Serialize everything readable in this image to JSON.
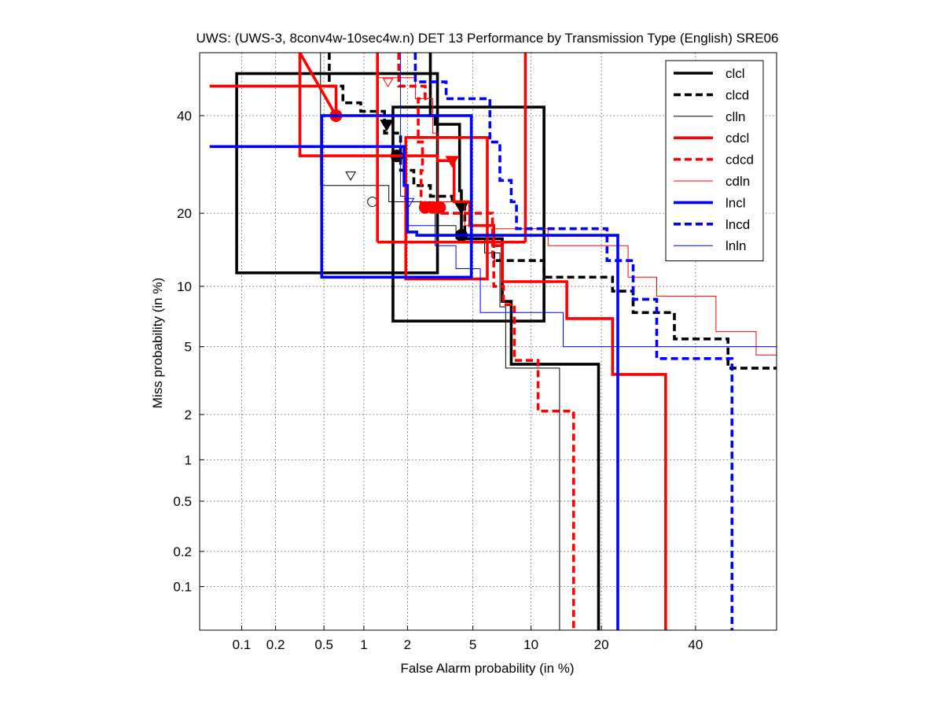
{
  "chart_data": {
    "type": "line",
    "title": "UWS: (UWS-3, 8conv4w-10sec4w.n) DET 13 Performance by Transmission Type (English) SRE06",
    "xlabel": "False Alarm probability (in %)",
    "ylabel": "Miss probability (in %)",
    "scale": "normal-deviate (probit) on both axes",
    "xlim": [
      0.04,
      60
    ],
    "ylim": [
      0.04,
      55
    ],
    "xticks": [
      0.1,
      0.2,
      0.5,
      1,
      2,
      5,
      10,
      20,
      40
    ],
    "xtick_labels": [
      "0.1",
      "0.2",
      "0.5",
      "1",
      "2",
      "5",
      "10",
      "20",
      "40"
    ],
    "yticks": [
      0.1,
      0.2,
      0.5,
      1,
      2,
      5,
      10,
      20,
      40
    ],
    "ytick_labels": [
      "0.1",
      "0.2",
      "0.5",
      "1",
      "2",
      "5",
      "10",
      "20",
      "40"
    ],
    "grid": true,
    "legend_position": "top-right",
    "series": [
      {
        "name": "clcl",
        "color": "#000000",
        "style": "solid",
        "width": "thick",
        "points": [
          [
            2.8,
            55
          ],
          [
            2.8,
            40
          ],
          [
            3.0,
            40
          ],
          [
            3.0,
            38
          ],
          [
            4.2,
            38
          ],
          [
            4.2,
            24
          ],
          [
            4.3,
            24
          ],
          [
            4.3,
            16
          ],
          [
            7.2,
            16
          ],
          [
            7.2,
            8.5
          ],
          [
            8.0,
            8.5
          ],
          [
            8.0,
            4.0
          ],
          [
            19.5,
            4.0
          ],
          [
            19.5,
            0.04
          ]
        ],
        "ci_box": {
          "x": [
            1.6,
            11.5
          ],
          "y": [
            6.8,
            42
          ]
        },
        "ci_box2": {
          "x": [
            0.09,
            3.1
          ],
          "y": [
            11.5,
            50
          ]
        },
        "markers": [
          {
            "x": 1.45,
            "y": 38,
            "symbol": "down-triangle"
          },
          {
            "x": 1.7,
            "y": 31,
            "symbol": "circle"
          },
          {
            "x": 4.3,
            "y": 21,
            "symbol": "down-triangle"
          },
          {
            "x": 4.3,
            "y": 16.5,
            "symbol": "circle"
          }
        ]
      },
      {
        "name": "clcd",
        "color": "#000000",
        "style": "dashed",
        "width": "thick",
        "points": [
          [
            0.55,
            55
          ],
          [
            0.55,
            47
          ],
          [
            0.7,
            47
          ],
          [
            0.7,
            43
          ],
          [
            0.95,
            43
          ],
          [
            0.95,
            41
          ],
          [
            1.4,
            41
          ],
          [
            1.4,
            36
          ],
          [
            1.8,
            36
          ],
          [
            1.8,
            28
          ],
          [
            2.2,
            28
          ],
          [
            2.2,
            25
          ],
          [
            2.8,
            25
          ],
          [
            2.8,
            23
          ],
          [
            3.8,
            23
          ],
          [
            3.8,
            22
          ],
          [
            4.5,
            22
          ],
          [
            4.5,
            16
          ],
          [
            6.5,
            16
          ],
          [
            6.5,
            13
          ],
          [
            11.5,
            13
          ],
          [
            11.5,
            11
          ],
          [
            22,
            11
          ],
          [
            22,
            9.5
          ],
          [
            26,
            9.5
          ],
          [
            26,
            7.5
          ],
          [
            35,
            7.5
          ],
          [
            35,
            5.5
          ],
          [
            48,
            5.5
          ],
          [
            48,
            3.8
          ],
          [
            60,
            3.8
          ]
        ],
        "markers": []
      },
      {
        "name": "clln",
        "color": "#000000",
        "style": "solid",
        "width": "thin",
        "points": [
          [
            0.47,
            55
          ],
          [
            0.47,
            25
          ],
          [
            1.5,
            25
          ],
          [
            1.5,
            22
          ],
          [
            3.0,
            22
          ],
          [
            3.0,
            18
          ],
          [
            4.0,
            18
          ],
          [
            4.0,
            16
          ],
          [
            5.8,
            16
          ],
          [
            5.8,
            14
          ],
          [
            7.0,
            14
          ],
          [
            7.0,
            8
          ],
          [
            7.5,
            8
          ],
          [
            7.5,
            3.8
          ],
          [
            13.5,
            3.8
          ],
          [
            13.5,
            0.04
          ]
        ],
        "markers": [
          {
            "x": 0.8,
            "y": 27,
            "symbol": "down-triangle-open"
          },
          {
            "x": 1.15,
            "y": 22,
            "symbol": "circle-open"
          }
        ]
      },
      {
        "name": "cdcl",
        "color": "#ff0000",
        "style": "solid",
        "width": "thick",
        "points": [
          [
            0.05,
            47
          ],
          [
            0.62,
            47
          ],
          [
            0.62,
            40
          ],
          [
            0.62,
            40
          ],
          [
            0.32,
            55
          ],
          [
            0.32,
            31
          ],
          [
            3.1,
            31
          ],
          [
            3.1,
            30
          ],
          [
            3.9,
            30
          ],
          [
            3.9,
            22
          ],
          [
            4.8,
            22
          ],
          [
            4.8,
            18
          ],
          [
            6.5,
            18
          ],
          [
            6.5,
            15
          ],
          [
            7.2,
            15
          ],
          [
            7.2,
            10.5
          ],
          [
            14.5,
            10.5
          ],
          [
            14.5,
            7
          ],
          [
            22,
            7
          ],
          [
            22,
            3.5
          ],
          [
            33,
            3.5
          ],
          [
            33,
            0.04
          ]
        ],
        "extra_lines": [
          {
            "x": [
              1.25,
              9.4
            ],
            "y": [
              15.5,
              15.5
            ]
          },
          {
            "x": [
              9.4,
              9.4
            ],
            "y": [
              15.5,
              55
            ]
          },
          {
            "x": [
              1.25,
              1.25
            ],
            "y": [
              15.5,
              55
            ]
          }
        ],
        "markers": [
          {
            "x": 0.62,
            "y": 40,
            "symbol": "circle"
          },
          {
            "x": 3.8,
            "y": 30,
            "symbol": "down-triangle"
          }
        ]
      },
      {
        "name": "cdcd",
        "color": "#ff0000",
        "style": "dashed",
        "width": "thick",
        "points": [
          [
            1.75,
            55
          ],
          [
            1.75,
            47
          ],
          [
            2.6,
            47
          ],
          [
            2.6,
            44
          ],
          [
            2.35,
            44
          ],
          [
            2.35,
            34
          ],
          [
            2.5,
            34
          ],
          [
            2.5,
            28
          ],
          [
            2.45,
            28
          ],
          [
            2.45,
            21
          ],
          [
            3.3,
            21
          ],
          [
            3.3,
            20
          ],
          [
            6.4,
            20
          ],
          [
            6.4,
            13
          ],
          [
            6.5,
            13
          ],
          [
            6.5,
            10
          ],
          [
            7.3,
            10
          ],
          [
            7.3,
            8.2
          ],
          [
            8.3,
            8.2
          ],
          [
            8.3,
            4.2
          ],
          [
            10.8,
            4.2
          ],
          [
            10.8,
            2.1
          ],
          [
            15.5,
            2.1
          ],
          [
            15.5,
            0.04
          ]
        ],
        "ci_box": {
          "x": [
            1.95,
            6.0
          ],
          "y": [
            10.8,
            35
          ]
        },
        "markers": [
          {
            "x": 2.6,
            "y": 21,
            "symbol": "circle"
          },
          {
            "x": 2.9,
            "y": 21,
            "symbol": "circle"
          },
          {
            "x": 3.2,
            "y": 21,
            "symbol": "circle"
          }
        ]
      },
      {
        "name": "cdln",
        "color": "#ff0000",
        "style": "solid",
        "width": "thin",
        "points": [
          [
            1.25,
            55
          ],
          [
            1.25,
            49
          ],
          [
            2.25,
            49
          ],
          [
            2.25,
            44
          ],
          [
            2.9,
            44
          ],
          [
            2.9,
            36
          ],
          [
            3.1,
            36
          ],
          [
            3.1,
            22
          ],
          [
            4.5,
            22
          ],
          [
            4.5,
            18
          ],
          [
            6.5,
            18
          ],
          [
            6.5,
            17.5
          ],
          [
            12,
            17.5
          ],
          [
            12,
            15
          ],
          [
            25,
            15
          ],
          [
            25,
            11
          ],
          [
            31,
            11
          ],
          [
            31,
            9
          ],
          [
            45,
            9
          ],
          [
            45,
            6
          ],
          [
            55,
            6
          ],
          [
            55,
            4.5
          ],
          [
            60,
            4.5
          ]
        ],
        "markers": [
          {
            "x": 1.48,
            "y": 48,
            "symbol": "down-triangle-open"
          }
        ]
      },
      {
        "name": "lncl",
        "color": "#0000ff",
        "style": "solid",
        "width": "thick",
        "points": [
          [
            0.05,
            33
          ],
          [
            1.9,
            33
          ],
          [
            1.9,
            25
          ],
          [
            2.0,
            25
          ],
          [
            2.0,
            17
          ],
          [
            2.3,
            17
          ],
          [
            2.3,
            16.5
          ],
          [
            23,
            16.5
          ],
          [
            23,
            0.04
          ]
        ],
        "ci_box": {
          "x": [
            0.48,
            4.9
          ],
          "y": [
            11,
            40
          ]
        },
        "markers": []
      },
      {
        "name": "lncd",
        "color": "#0000ff",
        "style": "dashed",
        "width": "thick",
        "points": [
          [
            2.25,
            55
          ],
          [
            2.25,
            48
          ],
          [
            3.5,
            48
          ],
          [
            3.5,
            44
          ],
          [
            6.2,
            44
          ],
          [
            6.2,
            34
          ],
          [
            7.0,
            34
          ],
          [
            7.0,
            26
          ],
          [
            8.0,
            26
          ],
          [
            8.0,
            22
          ],
          [
            8.5,
            22
          ],
          [
            8.5,
            17.5
          ],
          [
            21,
            17.5
          ],
          [
            21,
            13
          ],
          [
            26,
            13
          ],
          [
            26,
            8.7
          ],
          [
            31,
            8.7
          ],
          [
            31,
            4.3
          ],
          [
            49,
            4.3
          ],
          [
            49,
            0.04
          ]
        ],
        "markers": []
      },
      {
        "name": "lnln",
        "color": "#0000ff",
        "style": "solid",
        "width": "thin",
        "points": [
          [
            1.8,
            55
          ],
          [
            1.8,
            23
          ],
          [
            2.0,
            23
          ],
          [
            2.0,
            18
          ],
          [
            3.0,
            18
          ],
          [
            3.0,
            15
          ],
          [
            4.0,
            15
          ],
          [
            4.0,
            12
          ],
          [
            5.5,
            12
          ],
          [
            5.5,
            7.5
          ],
          [
            14,
            7.5
          ],
          [
            14,
            5
          ],
          [
            60,
            5
          ]
        ],
        "markers": [
          {
            "x": 2.05,
            "y": 22,
            "symbol": "down-triangle-open"
          }
        ]
      }
    ]
  }
}
